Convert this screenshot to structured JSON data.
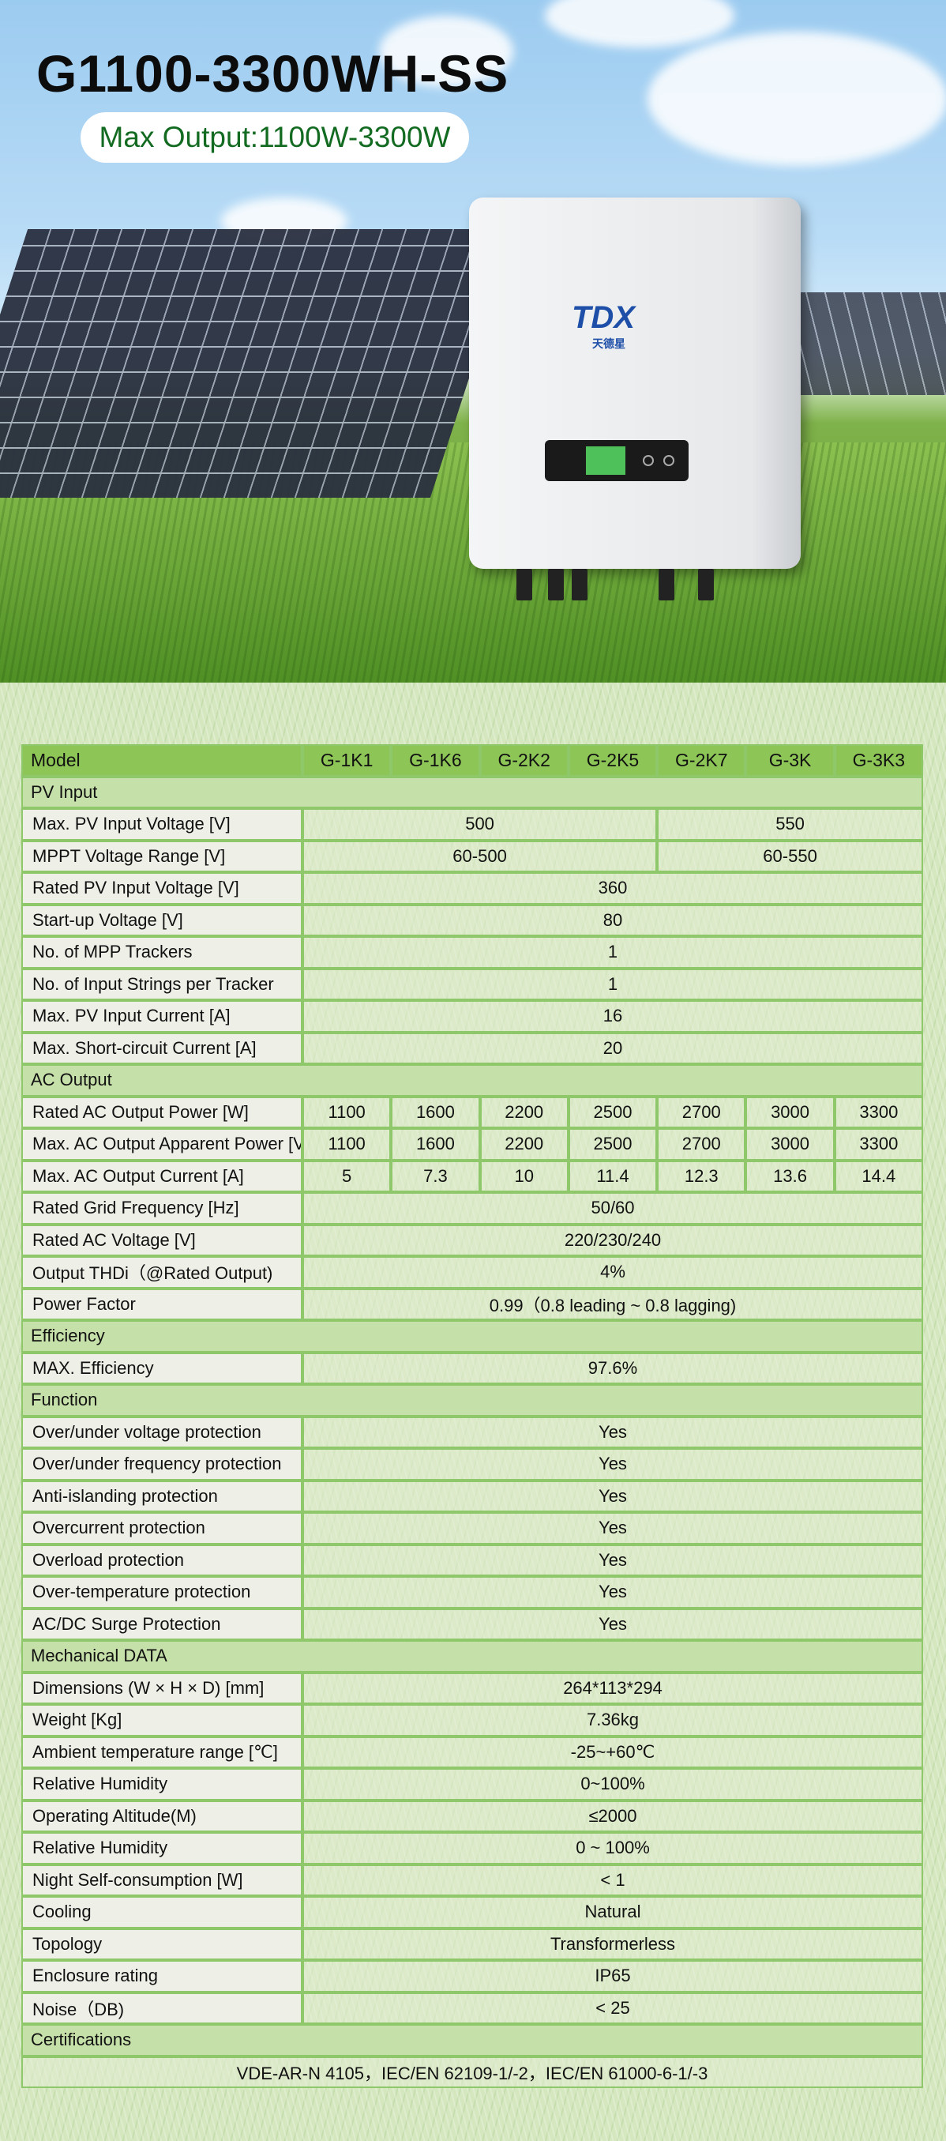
{
  "hero": {
    "title": "G1100-3300WH-SS",
    "output_label": "Max Output:",
    "output_value": "1100W-3300W",
    "brand_logo": "TDX",
    "brand_sub": "天德星"
  },
  "colors": {
    "header": "#8dc556",
    "section": "#c6e0a9",
    "label_cell": "#eef0e8",
    "border": "#8fc86a",
    "pill_text": "#136b22"
  },
  "table": {
    "header": {
      "label": "Model",
      "models": [
        "G-1K1",
        "G-1K6",
        "G-2K2",
        "G-2K5",
        "G-2K7",
        "G-3K",
        "G-3K3"
      ]
    },
    "rows": [
      {
        "type": "section",
        "label": "PV Input"
      },
      {
        "type": "split",
        "label": "Max. PV Input Voltage [V]",
        "values": [
          "500",
          "550"
        ]
      },
      {
        "type": "split",
        "label": "MPPT Voltage Range [V]",
        "values": [
          "60-500",
          "60-550"
        ]
      },
      {
        "type": "single",
        "label": "Rated PV Input Voltage [V]",
        "value": "360"
      },
      {
        "type": "single",
        "label": "Start-up Voltage [V]",
        "value": "80"
      },
      {
        "type": "single",
        "label": "No. of MPP Trackers",
        "value": "1"
      },
      {
        "type": "single",
        "label": "No. of Input Strings per Tracker",
        "value": "1"
      },
      {
        "type": "single",
        "label": "Max. PV Input Current [A]",
        "value": "16"
      },
      {
        "type": "single",
        "label": "Max. Short-circuit Current [A]",
        "value": "20"
      },
      {
        "type": "section",
        "label": "AC Output"
      },
      {
        "type": "models",
        "label": "Rated AC Output Power [W]",
        "values": [
          "1100",
          "1600",
          "2200",
          "2500",
          "2700",
          "3000",
          "3300"
        ]
      },
      {
        "type": "models",
        "label": "Max. AC Output Apparent Power [VA]",
        "values": [
          "1100",
          "1600",
          "2200",
          "2500",
          "2700",
          "3000",
          "3300"
        ]
      },
      {
        "type": "models",
        "label": "Max. AC Output Current [A]",
        "values": [
          "5",
          "7.3",
          "10",
          "11.4",
          "12.3",
          "13.6",
          "14.4"
        ]
      },
      {
        "type": "single",
        "label": "Rated Grid Frequency [Hz]",
        "value": "50/60"
      },
      {
        "type": "single",
        "label": "Rated AC Voltage [V]",
        "value": "220/230/240"
      },
      {
        "type": "single",
        "label": "Output THDi（@Rated Output)",
        "value": "4%"
      },
      {
        "type": "single",
        "label": "Power Factor",
        "value": "0.99（0.8 leading ~ 0.8 lagging)"
      },
      {
        "type": "section",
        "label": "Efficiency"
      },
      {
        "type": "single",
        "label": "MAX. Efficiency",
        "value": "97.6%"
      },
      {
        "type": "section",
        "label": "Function"
      },
      {
        "type": "single",
        "label": "Over/under voltage protection",
        "value": "Yes"
      },
      {
        "type": "single",
        "label": "Over/under frequency protection",
        "value": "Yes"
      },
      {
        "type": "single",
        "label": "Anti-islanding protection",
        "value": "Yes"
      },
      {
        "type": "single",
        "label": "Overcurrent protection",
        "value": "Yes"
      },
      {
        "type": "single",
        "label": "Overload protection",
        "value": "Yes"
      },
      {
        "type": "single",
        "label": "Over-temperature protection",
        "value": "Yes"
      },
      {
        "type": "single",
        "label": "AC/DC Surge Protection",
        "value": "Yes"
      },
      {
        "type": "section",
        "label": "Mechanical DATA"
      },
      {
        "type": "single",
        "label": "Dimensions (W × H × D) [mm]",
        "value": "264*113*294"
      },
      {
        "type": "single",
        "label": "Weight [Kg]",
        "value": "7.36kg"
      },
      {
        "type": "single",
        "label": "Ambient temperature range [℃]",
        "value": "-25~+60℃"
      },
      {
        "type": "single",
        "label": "Relative Humidity",
        "value": "0~100%"
      },
      {
        "type": "single",
        "label": "Operating Altitude(M)",
        "value": "≤2000"
      },
      {
        "type": "single",
        "label": "Relative Humidity",
        "value": "0 ~ 100%"
      },
      {
        "type": "single",
        "label": "Night Self-consumption [W]",
        "value": "< 1"
      },
      {
        "type": "single",
        "label": "Cooling",
        "value": "Natural"
      },
      {
        "type": "single",
        "label": "Topology",
        "value": "Transformerless"
      },
      {
        "type": "single",
        "label": "Enclosure rating",
        "value": "IP65"
      },
      {
        "type": "single",
        "label": "Noise（DB)",
        "value": "< 25"
      },
      {
        "type": "section",
        "label": "Certifications"
      },
      {
        "type": "full",
        "value": "VDE-AR-N 4105，IEC/EN 62109-1/-2，IEC/EN 61000-6-1/-3"
      }
    ]
  }
}
